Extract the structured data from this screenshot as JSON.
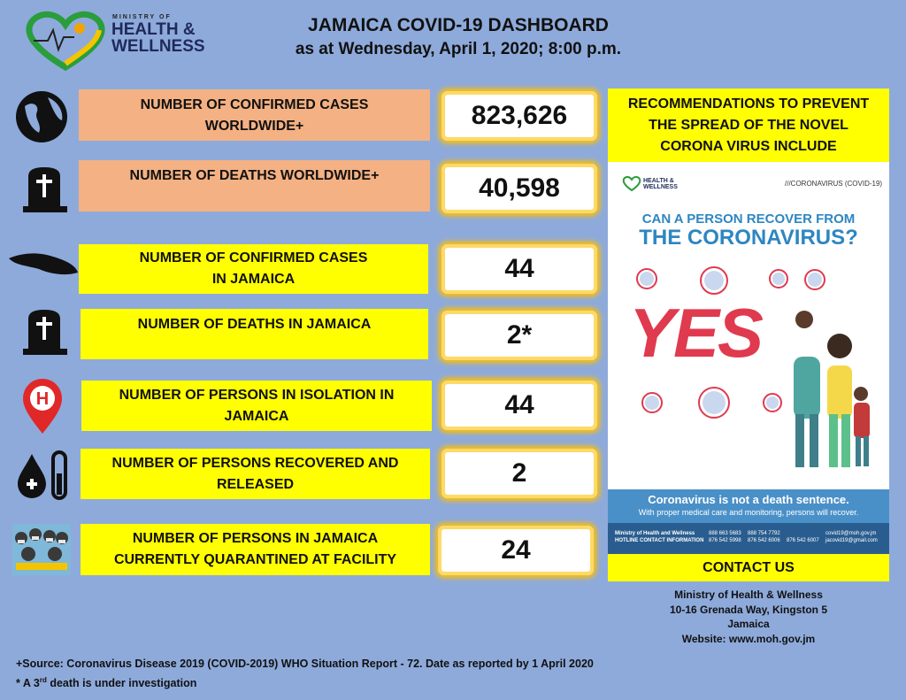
{
  "header": {
    "logo": {
      "line1": "MINISTRY OF",
      "line2": "HEALTH &",
      "line3": "WELLNESS"
    },
    "title": "JAMAICA COVID-19 DASHBOARD",
    "subtitle": "as at Wednesday, April 1, 2020; 8:00 p.m."
  },
  "stats": [
    {
      "label": [
        "NUMBER OF CONFIRMED CASES",
        "WORLDWIDE+"
      ],
      "value": "823,626"
    },
    {
      "label": [
        "NUMBER OF DEATHS WORLDWIDE+"
      ],
      "value": "40,598"
    },
    {
      "label": [
        "NUMBER OF CONFIRMED CASES",
        "IN JAMAICA"
      ],
      "value": "44"
    },
    {
      "label": [
        "NUMBER OF DEATHS IN JAMAICA"
      ],
      "value": "2*"
    },
    {
      "label": [
        "NUMBER OF PERSONS IN ISOLATION IN",
        "JAMAICA"
      ],
      "value": "44"
    },
    {
      "label": [
        "NUMBER OF PERSONS RECOVERED AND",
        "RELEASED"
      ],
      "value": "2"
    },
    {
      "label": [
        "NUMBER OF PERSONS IN JAMAICA",
        "CURRENTLY QUARANTINED AT FACILITY"
      ],
      "value": "24"
    }
  ],
  "recommendations": {
    "heading": [
      "RECOMMENDATIONS TO PREVENT",
      "THE SPREAD OF THE NOVEL",
      "CORONA VIRUS INCLUDE"
    ],
    "poster": {
      "logo": [
        "HEALTH &",
        "WELLNESS"
      ],
      "tag": "///CORONAVIRUS (COVID-19)",
      "question1": "CAN A PERSON RECOVER FROM",
      "question2": "THE CORONAVIRUS?",
      "answer": "YES",
      "banner1": "Coronavirus is not a death sentence.",
      "banner2": "With proper medical care and monitoring, persons will recover.",
      "footer_org": "Ministry of Health and Wellness",
      "footer_hotline": "HOTLINE CONTACT INFORMATION",
      "phones": [
        "888 663 5683",
        "888 754 7792",
        "876 542 5998",
        "876 542 6006",
        "876 542 6007"
      ],
      "emails": [
        "covid19@moh.gov.jm",
        "jacovid19@gmail.com"
      ]
    },
    "contact_heading": "CONTACT US"
  },
  "contact": [
    "Ministry of Health & Wellness",
    "10-16 Grenada Way, Kingston 5",
    "Jamaica",
    "Website: www.moh.gov.jm"
  ],
  "footnotes": {
    "source": "+Source: Coronavirus Disease 2019 (COVID-2019) WHO Situation Report - 72. Date as reported by 1 April 2020",
    "note": [
      "* A 3",
      "rd",
      " death is under investigation"
    ]
  }
}
